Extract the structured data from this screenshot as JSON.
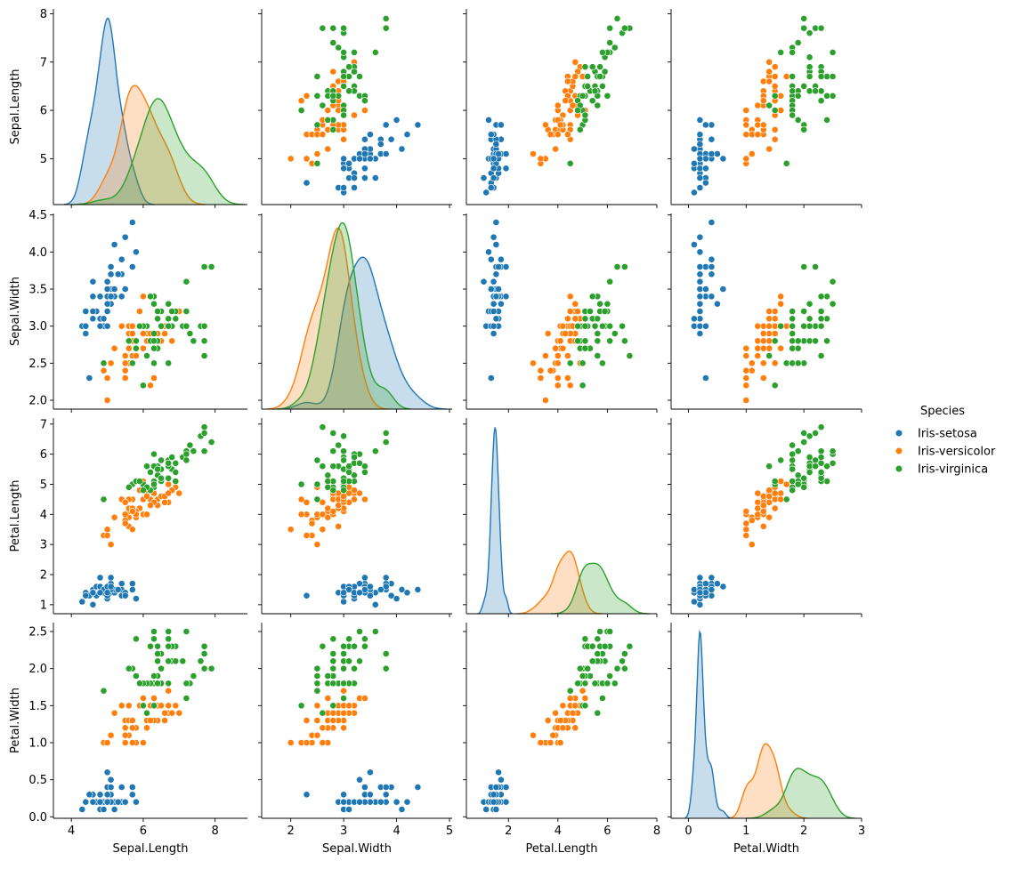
{
  "chart_data": {
    "type": "scatter",
    "kind": "pairplot",
    "variables": [
      "Sepal.Length",
      "Sepal.Width",
      "Petal.Length",
      "Petal.Width"
    ],
    "hue": "Species",
    "legend": {
      "title": "Species",
      "placement": "right",
      "entries": [
        "Iris-setosa",
        "Iris-versicolor",
        "Iris-virginica"
      ]
    },
    "colors": {
      "Iris-setosa": "#1f77b4",
      "Iris-versicolor": "#ff7f0e",
      "Iris-virginica": "#2ca02c"
    },
    "axes": {
      "Sepal.Length": {
        "lim": [
          3.5,
          8.9
        ],
        "ticks": [
          4,
          6,
          8
        ],
        "ylim": [
          4.05,
          8.1
        ],
        "yticks": [
          5,
          6,
          7,
          8
        ]
      },
      "Sepal.Width": {
        "lim": [
          1.45,
          5.05
        ],
        "ticks": [
          2,
          3,
          4,
          5
        ],
        "ylim": [
          1.88,
          4.52
        ],
        "yticks": [
          2.0,
          2.5,
          3.0,
          3.5,
          4.0,
          4.5
        ]
      },
      "Petal.Length": {
        "lim": [
          0.3,
          8.0
        ],
        "ticks": [
          2,
          4,
          6,
          8
        ],
        "ylim": [
          0.7,
          7.2
        ],
        "yticks": [
          1,
          2,
          3,
          4,
          5,
          6,
          7
        ]
      },
      "Petal.Width": {
        "lim": [
          -0.3,
          3.0
        ],
        "ticks": [
          0,
          1,
          2,
          3
        ],
        "ylim": [
          -0.02,
          2.62
        ],
        "yticks": [
          0.0,
          0.5,
          1.0,
          1.5,
          2.0,
          2.5
        ]
      }
    },
    "grid": false,
    "series": [
      {
        "name": "Iris-setosa",
        "points": [
          [
            5.1,
            3.5,
            1.4,
            0.2
          ],
          [
            4.9,
            3.0,
            1.4,
            0.2
          ],
          [
            4.7,
            3.2,
            1.3,
            0.2
          ],
          [
            4.6,
            3.1,
            1.5,
            0.2
          ],
          [
            5.0,
            3.6,
            1.4,
            0.2
          ],
          [
            5.4,
            3.9,
            1.7,
            0.4
          ],
          [
            4.6,
            3.4,
            1.4,
            0.3
          ],
          [
            5.0,
            3.4,
            1.5,
            0.2
          ],
          [
            4.4,
            2.9,
            1.4,
            0.2
          ],
          [
            4.9,
            3.1,
            1.5,
            0.1
          ],
          [
            5.4,
            3.7,
            1.5,
            0.2
          ],
          [
            4.8,
            3.4,
            1.6,
            0.2
          ],
          [
            4.8,
            3.0,
            1.4,
            0.1
          ],
          [
            4.3,
            3.0,
            1.1,
            0.1
          ],
          [
            5.8,
            4.0,
            1.2,
            0.2
          ],
          [
            5.7,
            4.4,
            1.5,
            0.4
          ],
          [
            5.4,
            3.9,
            1.3,
            0.4
          ],
          [
            5.1,
            3.5,
            1.4,
            0.3
          ],
          [
            5.7,
            3.8,
            1.7,
            0.3
          ],
          [
            5.1,
            3.8,
            1.5,
            0.3
          ],
          [
            5.4,
            3.4,
            1.7,
            0.2
          ],
          [
            5.1,
            3.7,
            1.5,
            0.4
          ],
          [
            4.6,
            3.6,
            1.0,
            0.2
          ],
          [
            5.1,
            3.3,
            1.7,
            0.5
          ],
          [
            4.8,
            3.4,
            1.9,
            0.2
          ],
          [
            5.0,
            3.0,
            1.6,
            0.2
          ],
          [
            5.0,
            3.4,
            1.6,
            0.4
          ],
          [
            5.2,
            3.5,
            1.5,
            0.2
          ],
          [
            5.2,
            3.4,
            1.4,
            0.2
          ],
          [
            4.7,
            3.2,
            1.6,
            0.2
          ],
          [
            4.8,
            3.1,
            1.6,
            0.2
          ],
          [
            5.4,
            3.4,
            1.5,
            0.4
          ],
          [
            5.2,
            4.1,
            1.5,
            0.1
          ],
          [
            5.5,
            4.2,
            1.4,
            0.2
          ],
          [
            4.9,
            3.1,
            1.5,
            0.1
          ],
          [
            5.0,
            3.2,
            1.2,
            0.2
          ],
          [
            5.5,
            3.5,
            1.3,
            0.2
          ],
          [
            4.9,
            3.1,
            1.5,
            0.1
          ],
          [
            4.4,
            3.0,
            1.3,
            0.2
          ],
          [
            5.1,
            3.4,
            1.5,
            0.2
          ],
          [
            5.0,
            3.5,
            1.3,
            0.3
          ],
          [
            4.5,
            2.3,
            1.3,
            0.3
          ],
          [
            4.4,
            3.2,
            1.3,
            0.2
          ],
          [
            5.0,
            3.5,
            1.6,
            0.6
          ],
          [
            5.1,
            3.8,
            1.9,
            0.4
          ],
          [
            4.8,
            3.0,
            1.4,
            0.3
          ],
          [
            5.1,
            3.8,
            1.6,
            0.2
          ],
          [
            4.6,
            3.2,
            1.4,
            0.2
          ],
          [
            5.3,
            3.7,
            1.5,
            0.2
          ],
          [
            5.0,
            3.3,
            1.4,
            0.2
          ]
        ]
      },
      {
        "name": "Iris-versicolor",
        "points": [
          [
            7.0,
            3.2,
            4.7,
            1.4
          ],
          [
            6.4,
            3.2,
            4.5,
            1.5
          ],
          [
            6.9,
            3.1,
            4.9,
            1.5
          ],
          [
            5.5,
            2.3,
            4.0,
            1.3
          ],
          [
            6.5,
            2.8,
            4.6,
            1.5
          ],
          [
            5.7,
            2.8,
            4.5,
            1.3
          ],
          [
            6.3,
            3.3,
            4.7,
            1.6
          ],
          [
            4.9,
            2.4,
            3.3,
            1.0
          ],
          [
            6.6,
            2.9,
            4.6,
            1.3
          ],
          [
            5.2,
            2.7,
            3.9,
            1.4
          ],
          [
            5.0,
            2.0,
            3.5,
            1.0
          ],
          [
            5.9,
            3.0,
            4.2,
            1.5
          ],
          [
            6.0,
            2.2,
            4.0,
            1.0
          ],
          [
            6.1,
            2.9,
            4.7,
            1.4
          ],
          [
            5.6,
            2.9,
            3.6,
            1.3
          ],
          [
            6.7,
            3.1,
            4.4,
            1.4
          ],
          [
            5.6,
            3.0,
            4.5,
            1.5
          ],
          [
            5.8,
            2.7,
            4.1,
            1.0
          ],
          [
            6.2,
            2.2,
            4.5,
            1.5
          ],
          [
            5.6,
            2.5,
            3.9,
            1.1
          ],
          [
            5.9,
            3.2,
            4.8,
            1.8
          ],
          [
            6.1,
            2.8,
            4.0,
            1.3
          ],
          [
            6.3,
            2.5,
            4.9,
            1.5
          ],
          [
            6.1,
            2.8,
            4.7,
            1.2
          ],
          [
            6.4,
            2.9,
            4.3,
            1.3
          ],
          [
            6.6,
            3.0,
            4.4,
            1.4
          ],
          [
            6.8,
            2.8,
            4.8,
            1.4
          ],
          [
            6.7,
            3.0,
            5.0,
            1.7
          ],
          [
            6.0,
            2.9,
            4.5,
            1.5
          ],
          [
            5.7,
            2.6,
            3.5,
            1.0
          ],
          [
            5.5,
            2.4,
            3.8,
            1.1
          ],
          [
            5.5,
            2.4,
            3.7,
            1.0
          ],
          [
            5.8,
            2.7,
            3.9,
            1.2
          ],
          [
            6.0,
            2.7,
            5.1,
            1.6
          ],
          [
            5.4,
            3.0,
            4.5,
            1.5
          ],
          [
            6.0,
            3.4,
            4.5,
            1.6
          ],
          [
            6.7,
            3.1,
            4.7,
            1.5
          ],
          [
            6.3,
            2.3,
            4.4,
            1.3
          ],
          [
            5.6,
            3.0,
            4.1,
            1.3
          ],
          [
            5.5,
            2.5,
            4.0,
            1.3
          ],
          [
            5.5,
            2.6,
            4.4,
            1.2
          ],
          [
            6.1,
            3.0,
            4.6,
            1.4
          ],
          [
            5.8,
            2.6,
            4.0,
            1.2
          ],
          [
            5.0,
            2.3,
            3.3,
            1.0
          ],
          [
            5.6,
            2.7,
            4.2,
            1.3
          ],
          [
            5.7,
            3.0,
            4.2,
            1.2
          ],
          [
            5.7,
            2.9,
            4.2,
            1.3
          ],
          [
            6.2,
            2.9,
            4.3,
            1.3
          ],
          [
            5.1,
            2.5,
            3.0,
            1.1
          ],
          [
            5.7,
            2.8,
            4.1,
            1.3
          ]
        ]
      },
      {
        "name": "Iris-virginica",
        "points": [
          [
            6.3,
            3.3,
            6.0,
            2.5
          ],
          [
            5.8,
            2.7,
            5.1,
            1.9
          ],
          [
            7.1,
            3.0,
            5.9,
            2.1
          ],
          [
            6.3,
            2.9,
            5.6,
            1.8
          ],
          [
            6.5,
            3.0,
            5.8,
            2.2
          ],
          [
            7.6,
            3.0,
            6.6,
            2.1
          ],
          [
            4.9,
            2.5,
            4.5,
            1.7
          ],
          [
            7.3,
            2.9,
            6.3,
            1.8
          ],
          [
            6.7,
            2.5,
            5.8,
            1.8
          ],
          [
            7.2,
            3.6,
            6.1,
            2.5
          ],
          [
            6.5,
            3.2,
            5.1,
            2.0
          ],
          [
            6.4,
            2.7,
            5.3,
            1.9
          ],
          [
            6.8,
            3.0,
            5.5,
            2.1
          ],
          [
            5.7,
            2.5,
            5.0,
            2.0
          ],
          [
            5.8,
            2.8,
            5.1,
            2.4
          ],
          [
            6.4,
            3.2,
            5.3,
            2.3
          ],
          [
            6.5,
            3.0,
            5.5,
            1.8
          ],
          [
            7.7,
            3.8,
            6.7,
            2.2
          ],
          [
            7.7,
            2.6,
            6.9,
            2.3
          ],
          [
            6.0,
            2.2,
            5.0,
            1.5
          ],
          [
            6.9,
            3.2,
            5.7,
            2.3
          ],
          [
            5.6,
            2.8,
            4.9,
            2.0
          ],
          [
            7.7,
            2.8,
            6.7,
            2.0
          ],
          [
            6.3,
            2.7,
            4.9,
            1.8
          ],
          [
            6.7,
            3.3,
            5.7,
            2.1
          ],
          [
            7.2,
            3.2,
            6.0,
            1.8
          ],
          [
            6.2,
            2.8,
            4.8,
            1.8
          ],
          [
            6.1,
            3.0,
            4.9,
            1.8
          ],
          [
            6.4,
            2.8,
            5.6,
            2.1
          ],
          [
            7.2,
            3.0,
            5.8,
            1.6
          ],
          [
            7.4,
            2.8,
            6.1,
            1.9
          ],
          [
            7.9,
            3.8,
            6.4,
            2.0
          ],
          [
            6.4,
            2.8,
            5.6,
            2.2
          ],
          [
            6.3,
            2.8,
            5.1,
            1.5
          ],
          [
            6.1,
            2.6,
            5.6,
            1.4
          ],
          [
            7.7,
            3.0,
            6.1,
            2.3
          ],
          [
            6.3,
            3.4,
            5.6,
            2.4
          ],
          [
            6.4,
            3.1,
            5.5,
            1.8
          ],
          [
            6.0,
            3.0,
            4.8,
            1.8
          ],
          [
            6.9,
            3.1,
            5.4,
            2.1
          ],
          [
            6.7,
            3.1,
            5.6,
            2.4
          ],
          [
            6.9,
            3.1,
            5.1,
            2.3
          ],
          [
            5.8,
            2.7,
            5.1,
            1.9
          ],
          [
            6.8,
            3.2,
            5.9,
            2.3
          ],
          [
            6.7,
            3.3,
            5.7,
            2.5
          ],
          [
            6.7,
            3.0,
            5.2,
            2.3
          ],
          [
            6.3,
            2.5,
            5.0,
            1.9
          ],
          [
            6.5,
            3.0,
            5.2,
            2.0
          ],
          [
            6.2,
            3.4,
            5.4,
            2.3
          ],
          [
            5.9,
            3.0,
            5.1,
            1.8
          ]
        ]
      }
    ]
  }
}
